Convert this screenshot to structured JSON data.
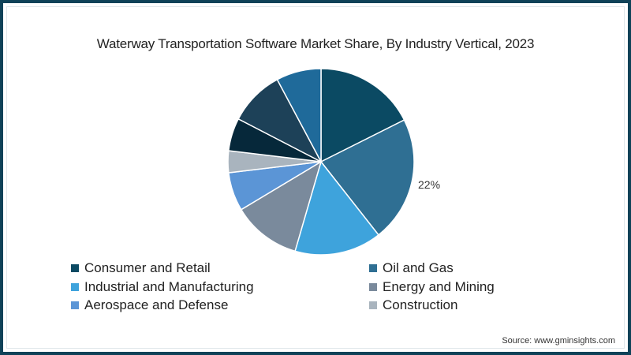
{
  "chart_data": {
    "type": "pie",
    "title": "Waterway Transportation Software Market Share, By Industry Vertical, 2023",
    "slices": [
      {
        "label": "Consumer and Retail",
        "value": 17.6,
        "color": "#0b4a63"
      },
      {
        "label": "Oil and Gas",
        "value": 21.8,
        "color": "#2f6f93",
        "data_label": "22%"
      },
      {
        "label": "Industrial and Manufacturing",
        "value": 15.1,
        "color": "#3ea3dc"
      },
      {
        "label": "Energy and Mining",
        "value": 11.9,
        "color": "#7a8a9c"
      },
      {
        "label": "Aerospace and Defense",
        "value": 6.7,
        "color": "#5b95d6"
      },
      {
        "label": "Construction",
        "value": 3.8,
        "color": "#a9b4be"
      },
      {
        "label": "",
        "value": 5.7,
        "color": "#06283a"
      },
      {
        "label": "",
        "value": 9.6,
        "color": "#1d4158"
      },
      {
        "label": "",
        "value": 7.8,
        "color": "#1f6a9a"
      }
    ],
    "legend_position": "bottom",
    "legend": [
      {
        "label": "Consumer and Retail",
        "color": "#0b4a63"
      },
      {
        "label": "Oil and Gas",
        "color": "#2f6f93"
      },
      {
        "label": "Industrial and Manufacturing",
        "color": "#3ea3dc"
      },
      {
        "label": "Energy and Mining",
        "color": "#7a8a9c"
      },
      {
        "label": "Aerospace and Defense",
        "color": "#5b95d6"
      },
      {
        "label": "Construction",
        "color": "#a9b4be"
      }
    ],
    "annotations": [
      "22%"
    ]
  },
  "source": "Source: www.gminsights.com"
}
